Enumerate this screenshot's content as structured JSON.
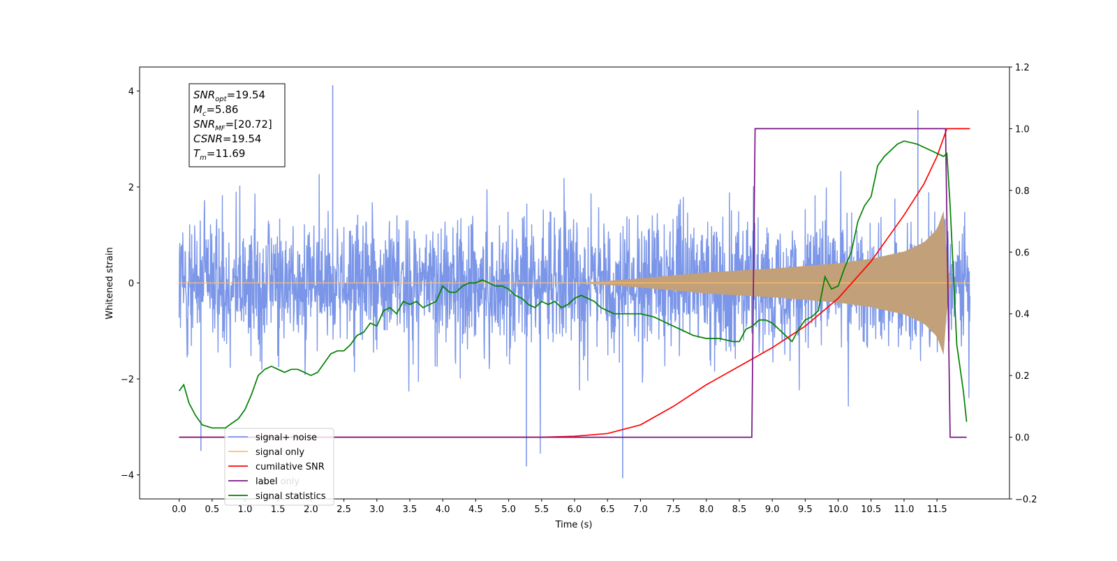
{
  "chart_data": {
    "type": "line",
    "xlabel": "Time (s)",
    "ylabel": "Whitened strain",
    "xlim": [
      -0.6,
      12.6
    ],
    "ylim_left": [
      -4.5,
      4.5
    ],
    "ylim_right": [
      -0.2,
      1.2
    ],
    "xticks": [
      "0.0",
      "0.5",
      "1.0",
      "1.5",
      "2.0",
      "2.5",
      "3.0",
      "3.5",
      "4.0",
      "4.5",
      "5.0",
      "5.5",
      "6.0",
      "6.5",
      "7.0",
      "7.5",
      "8.0",
      "8.5",
      "9.0",
      "9.5",
      "10.0",
      "10.5",
      "11.0",
      "11.5"
    ],
    "yticks_left": [
      "−4",
      "−2",
      "0",
      "2",
      "4"
    ],
    "yticks_right": [
      "−0.2",
      "0.0",
      "0.2",
      "0.4",
      "0.6",
      "0.8",
      "1.0",
      "1.2"
    ],
    "stats_box": [
      {
        "sym": "SNR",
        "sub": "opt",
        "value": "=19.54"
      },
      {
        "sym": "M",
        "sub": "c",
        "value": "=5.86"
      },
      {
        "sym": "SNR",
        "sub": "MF",
        "value": "=[20.72]"
      },
      {
        "sym": "CSNR",
        "sub": "",
        "value": "=19.54"
      },
      {
        "sym": "T",
        "sub": "m",
        "value": "=11.69"
      }
    ],
    "legend": {
      "placement": "lower left",
      "entries": [
        {
          "label": "signal+ noise",
          "color": "#7b96e8"
        },
        {
          "label": "signal only",
          "color": "#ffbf66"
        },
        {
          "label": "cumilative SNR",
          "color": "#ff0000"
        },
        {
          "label": "label",
          "color": "#7a1486"
        },
        {
          "label": "signal statistics",
          "color": "#008000"
        }
      ],
      "hidden_text": "label only"
    },
    "series": [
      {
        "name": "signal+ noise",
        "axis": "left",
        "color": "#7b96e8",
        "x_range": [
          0.0,
          12.0
        ],
        "base_amplitude": 1.0,
        "max": 4.12,
        "min": -4.07
      },
      {
        "name": "signal only",
        "axis": "left",
        "color": "#c2a07a",
        "envelope": {
          "x": [
            0.0,
            6.0,
            6.5,
            7.0,
            8.0,
            9.0,
            10.0,
            10.5,
            11.0,
            11.3,
            11.5,
            11.6,
            11.65,
            11.7,
            12.0
          ],
          "y": [
            0.0,
            0.0,
            0.03,
            0.07,
            0.16,
            0.22,
            0.3,
            0.37,
            0.48,
            0.62,
            0.82,
            1.1,
            0.4,
            0.0,
            0.0
          ]
        }
      },
      {
        "name": "cumilative SNR",
        "axis": "right",
        "color": "#ff0000",
        "x": [
          0.0,
          5.5,
          6.0,
          6.5,
          7.0,
          7.5,
          8.0,
          8.5,
          9.0,
          9.5,
          10.0,
          10.5,
          11.0,
          11.3,
          11.5,
          11.65,
          11.7,
          12.0
        ],
        "y": [
          0.0,
          0.0,
          0.003,
          0.012,
          0.04,
          0.1,
          0.17,
          0.23,
          0.29,
          0.36,
          0.45,
          0.57,
          0.72,
          0.82,
          0.91,
          1.0,
          1.0,
          1.0
        ]
      },
      {
        "name": "label",
        "axis": "right",
        "color": "#7a1486",
        "x": [
          0.0,
          8.69,
          8.74,
          11.63,
          11.7,
          11.95
        ],
        "y": [
          0.0,
          0.0,
          1.0,
          1.0,
          0.0,
          0.0
        ]
      },
      {
        "name": "signal statistics",
        "axis": "right",
        "color": "#008000",
        "x": [
          0.0,
          0.07,
          0.15,
          0.25,
          0.35,
          0.5,
          0.7,
          0.9,
          1.0,
          1.1,
          1.2,
          1.3,
          1.4,
          1.5,
          1.6,
          1.7,
          1.8,
          1.9,
          2.0,
          2.1,
          2.2,
          2.3,
          2.4,
          2.5,
          2.6,
          2.7,
          2.8,
          2.9,
          3.0,
          3.1,
          3.2,
          3.3,
          3.4,
          3.5,
          3.6,
          3.7,
          3.8,
          3.9,
          4.0,
          4.1,
          4.2,
          4.3,
          4.4,
          4.5,
          4.6,
          4.7,
          4.8,
          4.9,
          5.0,
          5.1,
          5.2,
          5.3,
          5.4,
          5.5,
          5.6,
          5.7,
          5.8,
          5.9,
          6.0,
          6.1,
          6.2,
          6.3,
          6.4,
          6.5,
          6.6,
          6.7,
          6.8,
          6.9,
          7.0,
          7.2,
          7.4,
          7.6,
          7.8,
          8.0,
          8.2,
          8.4,
          8.5,
          8.6,
          8.7,
          8.8,
          8.9,
          9.0,
          9.1,
          9.2,
          9.3,
          9.4,
          9.5,
          9.6,
          9.7,
          9.8,
          9.9,
          10.0,
          10.1,
          10.2,
          10.3,
          10.4,
          10.5,
          10.6,
          10.7,
          10.8,
          10.9,
          11.0,
          11.2,
          11.4,
          11.5,
          11.6,
          11.65,
          11.7,
          11.8,
          11.9,
          11.95
        ],
        "y": [
          0.15,
          0.17,
          0.11,
          0.07,
          0.04,
          0.03,
          0.03,
          0.06,
          0.09,
          0.14,
          0.2,
          0.22,
          0.23,
          0.22,
          0.21,
          0.22,
          0.22,
          0.21,
          0.2,
          0.21,
          0.24,
          0.27,
          0.28,
          0.28,
          0.3,
          0.33,
          0.34,
          0.37,
          0.36,
          0.41,
          0.42,
          0.4,
          0.44,
          0.43,
          0.44,
          0.42,
          0.43,
          0.44,
          0.49,
          0.47,
          0.47,
          0.49,
          0.5,
          0.5,
          0.51,
          0.5,
          0.49,
          0.49,
          0.48,
          0.46,
          0.45,
          0.43,
          0.42,
          0.44,
          0.43,
          0.44,
          0.42,
          0.43,
          0.45,
          0.46,
          0.45,
          0.44,
          0.42,
          0.41,
          0.4,
          0.4,
          0.4,
          0.4,
          0.4,
          0.39,
          0.37,
          0.35,
          0.33,
          0.32,
          0.32,
          0.31,
          0.31,
          0.35,
          0.36,
          0.38,
          0.38,
          0.37,
          0.35,
          0.33,
          0.31,
          0.35,
          0.38,
          0.39,
          0.41,
          0.52,
          0.48,
          0.49,
          0.55,
          0.6,
          0.7,
          0.75,
          0.78,
          0.88,
          0.91,
          0.93,
          0.95,
          0.96,
          0.95,
          0.93,
          0.92,
          0.91,
          0.92,
          0.75,
          0.3,
          0.15,
          0.05
        ]
      }
    ]
  }
}
